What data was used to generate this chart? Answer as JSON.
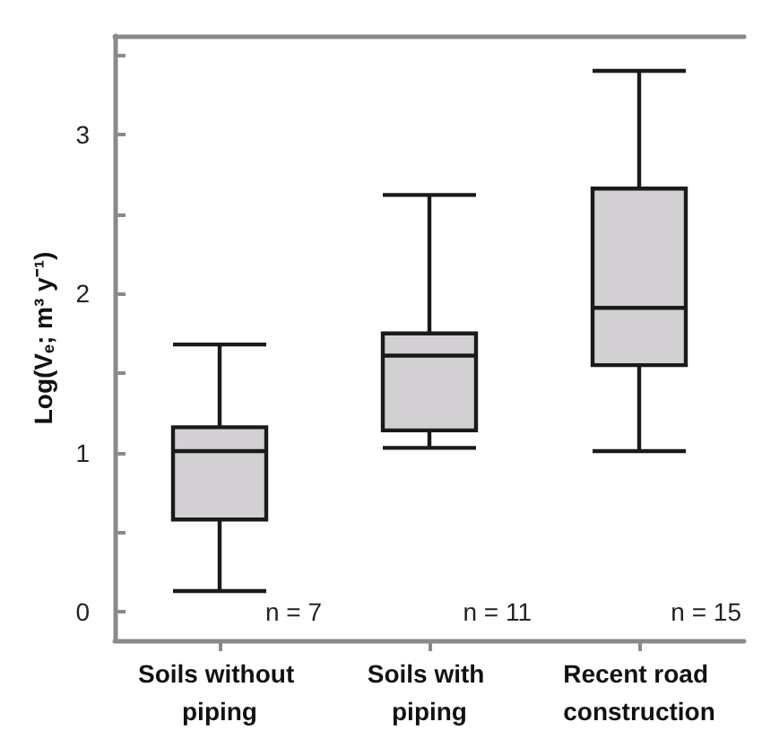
{
  "chart_data": {
    "type": "box",
    "ylabel": "Log(V$_{e}$; m³ y⁻¹)",
    "categories": [
      "Soils without piping",
      "Soils with piping",
      "Recent road construction"
    ],
    "boxes": [
      {
        "low": 0.13,
        "q1": 0.58,
        "median": 1.01,
        "q3": 1.16,
        "high": 1.68
      },
      {
        "low": 1.03,
        "q1": 1.14,
        "median": 1.61,
        "q3": 1.75,
        "high": 2.62
      },
      {
        "low": 1.01,
        "q1": 1.55,
        "median": 1.91,
        "q3": 2.66,
        "high": 3.4
      }
    ],
    "color": "#d3d0d3",
    "ylim": [
      -0.18,
      3.62
    ],
    "yticks": [
      0,
      {
        "value": 0.5,
        "label": null
      },
      1,
      {
        "value": 1.5,
        "label": null
      },
      2,
      {
        "value": 2.5,
        "label": null
      },
      3,
      {
        "value": 3.5,
        "label": null
      }
    ],
    "annotations": [
      "n = 7",
      "n = 11",
      "n = 15"
    ],
    "grid": false
  }
}
